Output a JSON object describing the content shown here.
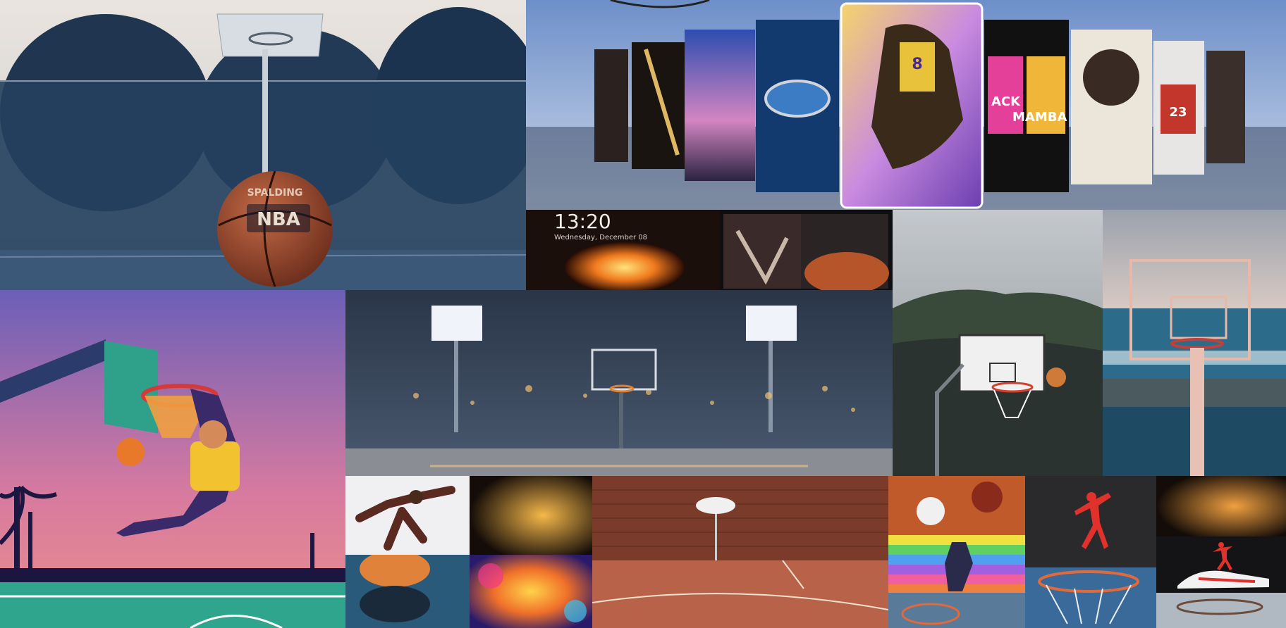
{
  "collage": {
    "ball_brand": "SPALDING",
    "ball_logo": "NBA",
    "jersey_number": "8",
    "poster_text_line1": "ACK",
    "poster_text_line2": "MAMBA",
    "jersey_23": "23",
    "lockscreen_time": "13:20",
    "lockscreen_date": "Wednesday, December 08"
  },
  "colors": {
    "court_blue": "#2d4a6b",
    "sky_pink": "#d77aa0",
    "orange": "#e8792b",
    "jordan_red": "#e0312b",
    "arena_dark": "#2a3548",
    "brick": "#7a3b2a"
  }
}
